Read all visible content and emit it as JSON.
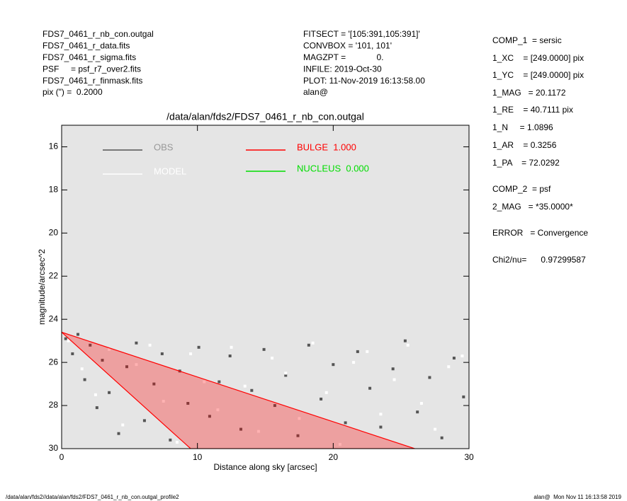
{
  "header": {
    "left": [
      "FDS7_0461_r_nb_con.outgal",
      "FDS7_0461_r_data.fits",
      "FDS7_0461_r_sigma.fits",
      "PSF     = psf_r7_over2.fits",
      "FDS7_0461_r_finmask.fits",
      "pix (\") =  0.2000"
    ],
    "middle": [
      "FITSECT = '[105:391,105:391]'",
      "CONVBOX = '101, 101'",
      "MAGZPT =             0.",
      "INFILE: 2019-Oct-30",
      "PLOT: 11-Nov-2019 16:13:58.00",
      "alan@"
    ]
  },
  "info": [
    "COMP_1  = sersic",
    "1_XC    = [249.0000] pix",
    "1_YC    = [249.0000] pix",
    "1_MAG   = 20.1172",
    "1_RE    = 40.7111 pix",
    "1_N     = 1.0896",
    "1_AR    = 0.3256",
    "1_PA    = 72.0292",
    "COMP_2  = psf",
    "2_MAG   = *35.0000*",
    "ERROR   = Convergence",
    "Chi2/nu=      0.97299587"
  ],
  "footer": {
    "left": "/data/alan/fds2//data/alan/fds2/FDS7_0461_r_nb_con.outgal_profile2",
    "right": "alan@  Mon Nov 11 16:13:58 2019"
  },
  "chart_data": {
    "type": "scatter",
    "title": "/data/alan/fds2/FDS7_0461_r_nb_con.outgal",
    "xlabel": "Distance along sky [arcsec]",
    "ylabel": "magnitude/arcsec^2",
    "xlim": [
      0,
      30
    ],
    "xticks": [
      0,
      10,
      20,
      30
    ],
    "ylim": [
      30,
      15
    ],
    "yticks": [
      16,
      18,
      20,
      22,
      24,
      26,
      28,
      30
    ],
    "series": [
      {
        "name": "OBS",
        "color": "#555555",
        "kind": "points",
        "x": [
          0.3,
          0.8,
          1.2,
          1.7,
          2.1,
          2.6,
          3.0,
          3.5,
          4.2,
          4.8,
          5.5,
          6.1,
          6.8,
          7.4,
          8.0,
          8.7,
          9.3,
          10.1,
          10.9,
          11.6,
          12.4,
          13.2,
          14.0,
          14.9,
          15.7,
          16.5,
          17.4,
          18.2,
          19.1,
          20.0,
          20.9,
          21.8,
          22.7,
          23.5,
          24.4,
          25.3,
          26.2,
          27.1,
          28.0,
          28.9,
          29.6
        ],
        "values": [
          24.9,
          25.6,
          24.7,
          26.8,
          25.2,
          28.1,
          25.9,
          27.4,
          29.3,
          26.2,
          25.1,
          28.7,
          27.0,
          25.6,
          29.6,
          26.4,
          27.9,
          25.3,
          28.5,
          26.9,
          25.7,
          29.1,
          27.3,
          25.4,
          28.0,
          26.6,
          29.4,
          25.2,
          27.7,
          26.1,
          28.8,
          25.5,
          27.2,
          29.0,
          26.3,
          25.0,
          28.3,
          26.7,
          29.5,
          25.8,
          27.6
        ]
      },
      {
        "name": "MODEL",
        "color": "#ffffff",
        "kind": "points",
        "x": [
          0.5,
          1.5,
          2.5,
          3.5,
          4.5,
          5.5,
          6.5,
          7.5,
          8.5,
          9.5,
          10.5,
          11.5,
          12.5,
          13.5,
          14.5,
          15.5,
          16.5,
          17.5,
          18.5,
          19.5,
          20.5,
          21.5,
          22.5,
          23.5,
          24.5,
          25.5,
          26.5,
          27.5,
          28.5,
          29.5
        ],
        "values": [
          25.0,
          26.3,
          27.5,
          25.4,
          28.9,
          26.1,
          25.2,
          27.8,
          29.7,
          25.6,
          26.9,
          28.2,
          25.3,
          27.1,
          29.2,
          25.8,
          26.5,
          28.6,
          25.1,
          27.4,
          29.8,
          26.0,
          25.5,
          28.4,
          26.8,
          25.2,
          27.9,
          29.1,
          26.2,
          25.7
        ]
      },
      {
        "name": "BULGE  1.000",
        "color": "#ff0000",
        "kind": "area",
        "x": [
          0,
          9.5,
          26
        ],
        "values": [
          24.6,
          30,
          30
        ]
      },
      {
        "name": "NUCLEUS  0.000",
        "color": "#00dd00",
        "kind": "line",
        "x": [],
        "values": []
      }
    ]
  }
}
